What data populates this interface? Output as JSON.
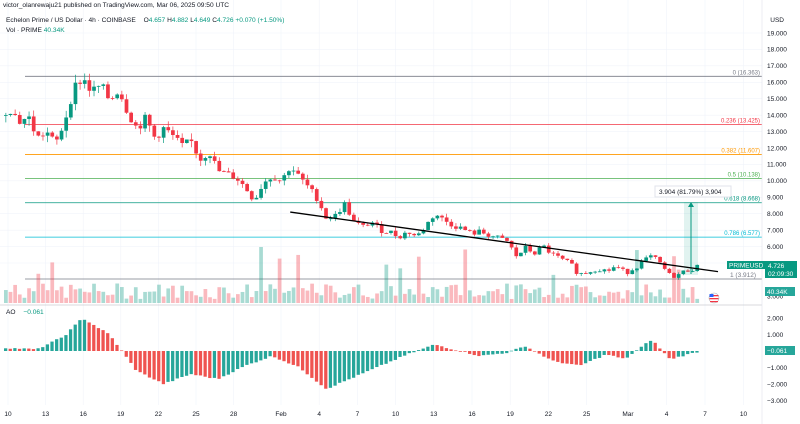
{
  "publisher": "victor_olanrewaju21 published on TradingView.com, Mar 06, 2025 09:50 UTC",
  "currency": "USD",
  "legend": {
    "symbol": "Echelon Prime / US Dollar · 4h · COINBASE",
    "o_label": "O",
    "open": "4.657",
    "h_label": "H",
    "high": "4.882",
    "l_label": "L",
    "low": "4.649",
    "c_label": "C",
    "close": "4.726",
    "change": "+0.070 (+1.50%)",
    "vol_label": "Vol · PRIME",
    "vol_value": "40.34K"
  },
  "ao": {
    "label": "AO",
    "value": "−0.061"
  },
  "price_axis": [
    "19.000",
    "18.000",
    "17.000",
    "16.000",
    "15.000",
    "14.000",
    "13.000",
    "12.000",
    "11.000",
    "10.000",
    "9.000",
    "8.000",
    "7.000",
    "6.000",
    "5.000",
    "3.000"
  ],
  "ao_axis": [
    "2.000",
    "1.000",
    "−1.000",
    "−2.000",
    "−3.000"
  ],
  "time_axis": [
    "10",
    "13",
    "16",
    "19",
    "22",
    "25",
    "28",
    "Feb",
    "4",
    "7",
    "10",
    "13",
    "16",
    "19",
    "22",
    "25",
    "Mar",
    "4",
    "7",
    "10"
  ],
  "badges": {
    "symbol": "PRIMEUSD",
    "price": "4.726",
    "countdown": "02:09:30",
    "volume": "40.34K",
    "ao": "−0.061",
    "fib_near": "1 (3.912)"
  },
  "fib_levels": [
    {
      "label": "0 (16.363)",
      "price": 16.363,
      "color": "#787b86"
    },
    {
      "label": "0.236 (13.425)",
      "price": 13.425,
      "color": "#f23645"
    },
    {
      "label": "0.382 (11.607)",
      "price": 11.607,
      "color": "#ff9800"
    },
    {
      "label": "0.5 (10.138)",
      "price": 10.138,
      "color": "#4caf50"
    },
    {
      "label": "0.618 (8.668)",
      "price": 8.668,
      "color": "#089981"
    },
    {
      "label": "0.786 (6.577)",
      "price": 6.577,
      "color": "#00bcd4"
    },
    {
      "label": "1 (3.912)",
      "price": 3.912,
      "color": "#787b86"
    }
  ],
  "measure_label": "3.904 (81.79%) 3,904",
  "colors": {
    "up": "#089981",
    "down": "#f23645",
    "ao_up": "#26a69a",
    "ao_down": "#ef5350"
  },
  "chart_data": {
    "type": "candlestick",
    "timeframe": "4h",
    "ylim": [
      3,
      19
    ],
    "price_path": [
      [
        0,
        14.0
      ],
      [
        2,
        14.4
      ],
      [
        4,
        13.6
      ],
      [
        6,
        13.9
      ],
      [
        8,
        12.6
      ],
      [
        10,
        13.0
      ],
      [
        12,
        12.2
      ],
      [
        14,
        13.6
      ],
      [
        16,
        15.6
      ],
      [
        18,
        16.3
      ],
      [
        20,
        15.4
      ],
      [
        22,
        15.8
      ],
      [
        24,
        14.9
      ],
      [
        26,
        15.6
      ],
      [
        28,
        14.2
      ],
      [
        30,
        13.2
      ],
      [
        32,
        13.8
      ],
      [
        34,
        12.6
      ],
      [
        36,
        13.2
      ],
      [
        38,
        12.7
      ],
      [
        40,
        12.1
      ],
      [
        42,
        12.4
      ],
      [
        44,
        11.3
      ],
      [
        46,
        11.8
      ],
      [
        48,
        10.6
      ],
      [
        50,
        10.4
      ],
      [
        52,
        10.2
      ],
      [
        54,
        9.6
      ],
      [
        56,
        8.8
      ],
      [
        58,
        9.9
      ],
      [
        60,
        10.3
      ],
      [
        62,
        10.0
      ],
      [
        64,
        10.9
      ],
      [
        66,
        10.2
      ],
      [
        68,
        9.6
      ],
      [
        70,
        8.9
      ],
      [
        72,
        7.7
      ],
      [
        74,
        7.9
      ],
      [
        76,
        8.6
      ],
      [
        78,
        7.5
      ],
      [
        80,
        7.2
      ],
      [
        82,
        7.5
      ],
      [
        84,
        7.0
      ],
      [
        86,
        6.9
      ],
      [
        88,
        6.6
      ],
      [
        90,
        6.9
      ],
      [
        92,
        6.6
      ],
      [
        94,
        7.3
      ],
      [
        96,
        8.0
      ],
      [
        98,
        7.6
      ],
      [
        100,
        7.3
      ],
      [
        102,
        7.1
      ],
      [
        104,
        6.8
      ],
      [
        106,
        6.9
      ],
      [
        108,
        6.7
      ],
      [
        110,
        6.5
      ],
      [
        112,
        6.3
      ],
      [
        114,
        5.4
      ],
      [
        116,
        5.9
      ],
      [
        118,
        5.6
      ],
      [
        120,
        6.0
      ],
      [
        122,
        5.5
      ],
      [
        124,
        5.2
      ],
      [
        126,
        4.9
      ],
      [
        128,
        4.3
      ],
      [
        130,
        4.5
      ],
      [
        132,
        4.7
      ],
      [
        134,
        4.5
      ],
      [
        136,
        4.8
      ],
      [
        138,
        4.4
      ],
      [
        140,
        4.7
      ],
      [
        142,
        5.1
      ],
      [
        144,
        5.4
      ],
      [
        146,
        4.9
      ],
      [
        148,
        4.2
      ],
      [
        150,
        4.3
      ],
      [
        152,
        4.6
      ],
      [
        154,
        4.73
      ]
    ],
    "trendline": [
      [
        0.47,
        8.1
      ],
      [
        1.0,
        4.9
      ]
    ],
    "ao_path": [
      [
        0,
        0.2
      ],
      [
        8,
        0.1
      ],
      [
        14,
        0.9
      ],
      [
        18,
        2.0
      ],
      [
        24,
        1.0
      ],
      [
        30,
        -1.2
      ],
      [
        36,
        -2.0
      ],
      [
        42,
        -1.4
      ],
      [
        48,
        -1.7
      ],
      [
        54,
        -0.9
      ],
      [
        60,
        -0.3
      ],
      [
        66,
        -1.0
      ],
      [
        72,
        -2.3
      ],
      [
        78,
        -1.6
      ],
      [
        84,
        -0.9
      ],
      [
        90,
        -0.2
      ],
      [
        96,
        0.4
      ],
      [
        100,
        0.1
      ],
      [
        106,
        -0.3
      ],
      [
        112,
        -0.1
      ],
      [
        116,
        0.3
      ],
      [
        122,
        -0.6
      ],
      [
        128,
        -0.9
      ],
      [
        134,
        -0.2
      ],
      [
        138,
        -0.5
      ],
      [
        142,
        0.3
      ],
      [
        144,
        0.7
      ],
      [
        148,
        -0.5
      ],
      [
        154,
        -0.06
      ]
    ]
  }
}
